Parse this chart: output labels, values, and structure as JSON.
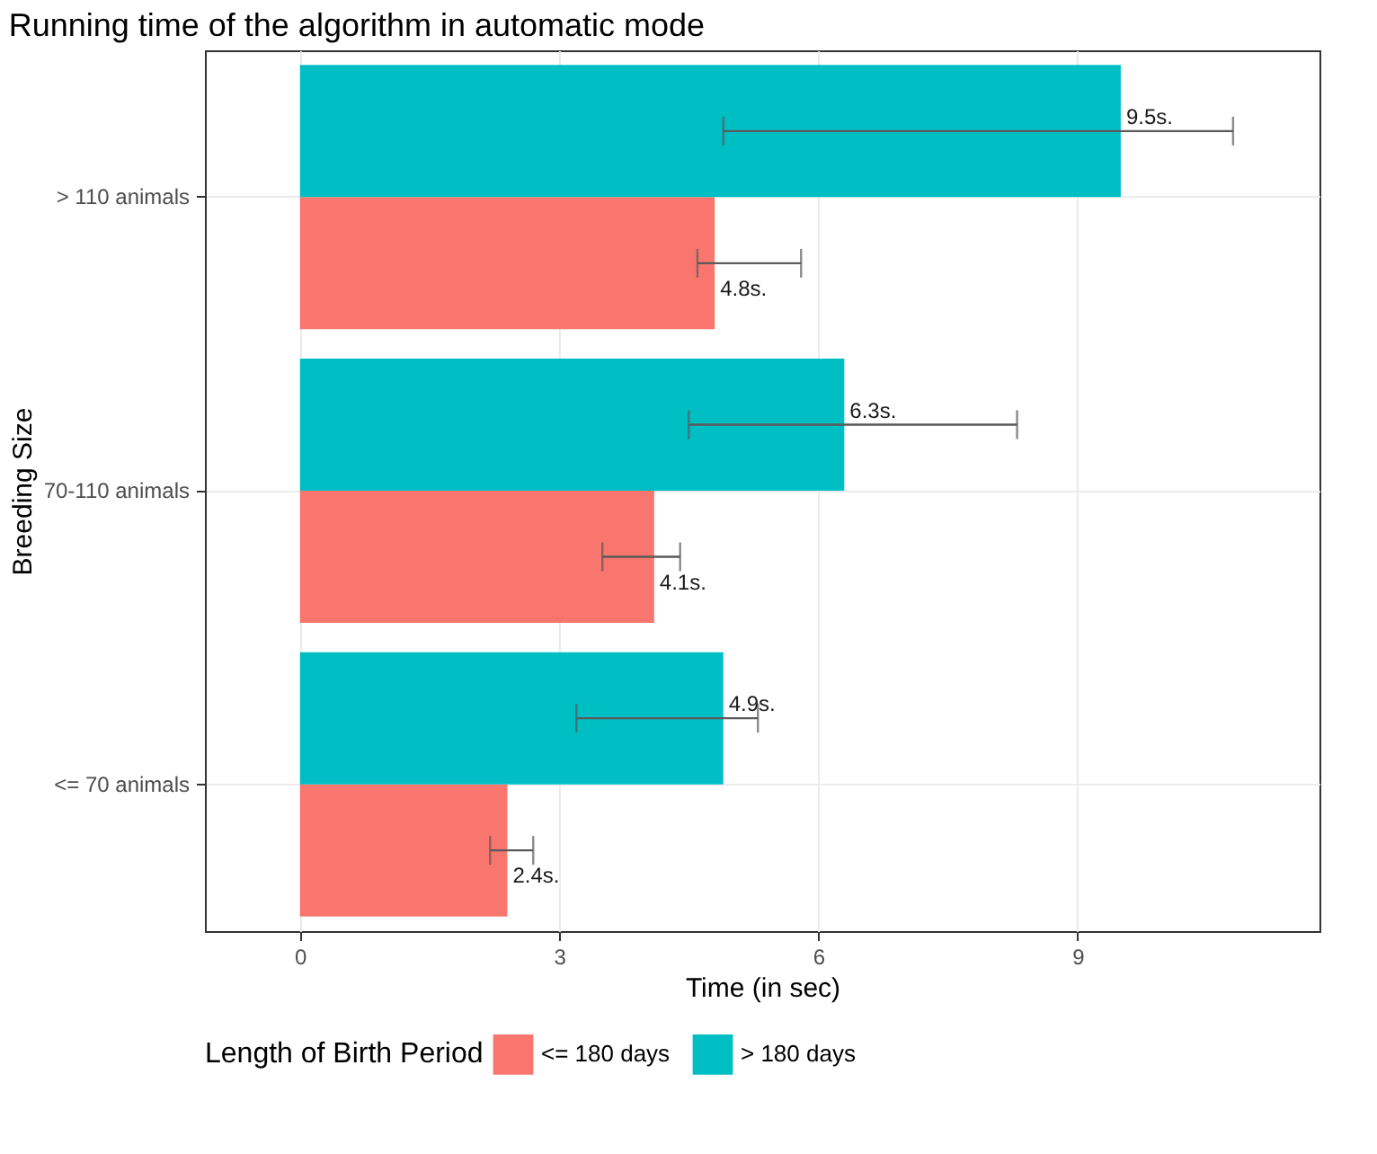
{
  "chart_data": {
    "type": "bar",
    "orientation": "horizontal",
    "title": "Running time of the algorithm in automatic mode",
    "xlabel": "Time (in sec)",
    "ylabel": "Breeding Size",
    "legend_title": "Length of Birth Period",
    "legend": "bottom",
    "grid": true,
    "categories": [
      "> 110 animals",
      "70-110 animals",
      "<= 70 animals"
    ],
    "xlim": [
      -1.1,
      11.8
    ],
    "xticks": [
      0,
      3,
      6,
      9
    ],
    "series": [
      {
        "name": "<= 180 days",
        "color": "#f8766d",
        "values": [
          4.8,
          4.1,
          2.4
        ],
        "errors": [
          [
            4.6,
            5.8
          ],
          [
            3.5,
            4.4
          ],
          [
            2.2,
            2.7
          ]
        ],
        "value_labels": [
          "4.8s.",
          "4.1s.",
          "2.4s."
        ]
      },
      {
        "name": "> 180 days",
        "color": "#00bfc4",
        "values": [
          9.5,
          6.3,
          4.9
        ],
        "errors": [
          [
            4.9,
            10.8
          ],
          [
            4.5,
            8.3
          ],
          [
            3.2,
            5.3
          ]
        ],
        "value_labels": [
          "9.5s.",
          "6.3s.",
          "4.9s."
        ]
      }
    ]
  }
}
